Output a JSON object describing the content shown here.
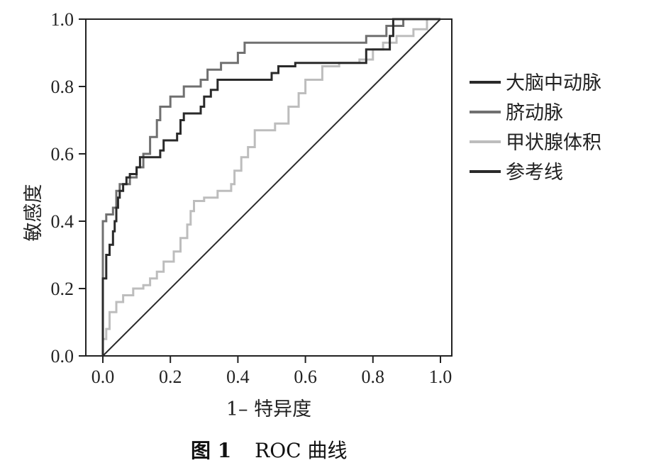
{
  "chart_data": {
    "type": "line",
    "xlabel": "1– 特异度",
    "ylabel": "敏感度",
    "xlim": [
      0.0,
      1.0
    ],
    "ylim": [
      0.0,
      1.0
    ],
    "xticks": [
      "0.0",
      "0.2",
      "0.4",
      "0.6",
      "0.8",
      "1.0"
    ],
    "yticks": [
      "0.0",
      "0.2",
      "0.4",
      "0.6",
      "0.8",
      "1.0"
    ],
    "grid": false,
    "legend_position": "right",
    "series": [
      {
        "name": "大脑中动脉",
        "color": "#2a2a2a",
        "stroke": "step",
        "points": [
          [
            0.0,
            0.0
          ],
          [
            0.0,
            0.23
          ],
          [
            0.01,
            0.23
          ],
          [
            0.01,
            0.3
          ],
          [
            0.02,
            0.3
          ],
          [
            0.02,
            0.33
          ],
          [
            0.03,
            0.33
          ],
          [
            0.03,
            0.37
          ],
          [
            0.035,
            0.37
          ],
          [
            0.035,
            0.4
          ],
          [
            0.04,
            0.4
          ],
          [
            0.04,
            0.44
          ],
          [
            0.045,
            0.44
          ],
          [
            0.045,
            0.47
          ],
          [
            0.05,
            0.47
          ],
          [
            0.05,
            0.49
          ],
          [
            0.06,
            0.49
          ],
          [
            0.06,
            0.51
          ],
          [
            0.07,
            0.51
          ],
          [
            0.07,
            0.53
          ],
          [
            0.08,
            0.53
          ],
          [
            0.08,
            0.54
          ],
          [
            0.1,
            0.54
          ],
          [
            0.1,
            0.56
          ],
          [
            0.11,
            0.56
          ],
          [
            0.11,
            0.59
          ],
          [
            0.17,
            0.59
          ],
          [
            0.17,
            0.61
          ],
          [
            0.18,
            0.61
          ],
          [
            0.18,
            0.64
          ],
          [
            0.22,
            0.64
          ],
          [
            0.22,
            0.66
          ],
          [
            0.23,
            0.66
          ],
          [
            0.23,
            0.7
          ],
          [
            0.24,
            0.7
          ],
          [
            0.24,
            0.72
          ],
          [
            0.29,
            0.72
          ],
          [
            0.29,
            0.74
          ],
          [
            0.3,
            0.74
          ],
          [
            0.3,
            0.77
          ],
          [
            0.32,
            0.77
          ],
          [
            0.32,
            0.79
          ],
          [
            0.34,
            0.79
          ],
          [
            0.34,
            0.82
          ],
          [
            0.5,
            0.82
          ],
          [
            0.5,
            0.84
          ],
          [
            0.52,
            0.84
          ],
          [
            0.52,
            0.86
          ],
          [
            0.57,
            0.86
          ],
          [
            0.57,
            0.87
          ],
          [
            0.78,
            0.87
          ],
          [
            0.78,
            0.91
          ],
          [
            0.85,
            0.91
          ],
          [
            0.85,
            0.95
          ],
          [
            0.86,
            0.95
          ],
          [
            0.86,
            1.0
          ],
          [
            1.0,
            1.0
          ]
        ]
      },
      {
        "name": "脐动脉",
        "color": "#707070",
        "stroke": "step",
        "points": [
          [
            0.0,
            0.0
          ],
          [
            0.0,
            0.4
          ],
          [
            0.01,
            0.4
          ],
          [
            0.01,
            0.42
          ],
          [
            0.03,
            0.42
          ],
          [
            0.03,
            0.44
          ],
          [
            0.04,
            0.44
          ],
          [
            0.04,
            0.49
          ],
          [
            0.05,
            0.49
          ],
          [
            0.05,
            0.51
          ],
          [
            0.08,
            0.51
          ],
          [
            0.08,
            0.53
          ],
          [
            0.1,
            0.53
          ],
          [
            0.1,
            0.56
          ],
          [
            0.12,
            0.56
          ],
          [
            0.12,
            0.6
          ],
          [
            0.14,
            0.6
          ],
          [
            0.14,
            0.65
          ],
          [
            0.16,
            0.65
          ],
          [
            0.16,
            0.7
          ],
          [
            0.17,
            0.7
          ],
          [
            0.17,
            0.74
          ],
          [
            0.2,
            0.74
          ],
          [
            0.2,
            0.77
          ],
          [
            0.24,
            0.77
          ],
          [
            0.24,
            0.8
          ],
          [
            0.29,
            0.8
          ],
          [
            0.29,
            0.82
          ],
          [
            0.31,
            0.82
          ],
          [
            0.31,
            0.85
          ],
          [
            0.35,
            0.85
          ],
          [
            0.35,
            0.87
          ],
          [
            0.4,
            0.87
          ],
          [
            0.4,
            0.9
          ],
          [
            0.42,
            0.9
          ],
          [
            0.42,
            0.93
          ],
          [
            0.78,
            0.93
          ],
          [
            0.78,
            0.95
          ],
          [
            0.84,
            0.95
          ],
          [
            0.84,
            0.98
          ],
          [
            0.89,
            0.98
          ],
          [
            0.89,
            1.0
          ],
          [
            1.0,
            1.0
          ]
        ]
      },
      {
        "name": "甲状腺体积",
        "color": "#bdbdbd",
        "stroke": "step",
        "points": [
          [
            0.0,
            0.0
          ],
          [
            0.0,
            0.05
          ],
          [
            0.01,
            0.05
          ],
          [
            0.01,
            0.08
          ],
          [
            0.02,
            0.08
          ],
          [
            0.02,
            0.13
          ],
          [
            0.04,
            0.13
          ],
          [
            0.04,
            0.16
          ],
          [
            0.06,
            0.16
          ],
          [
            0.06,
            0.18
          ],
          [
            0.09,
            0.18
          ],
          [
            0.09,
            0.2
          ],
          [
            0.12,
            0.2
          ],
          [
            0.12,
            0.21
          ],
          [
            0.14,
            0.21
          ],
          [
            0.14,
            0.23
          ],
          [
            0.16,
            0.23
          ],
          [
            0.16,
            0.25
          ],
          [
            0.18,
            0.25
          ],
          [
            0.18,
            0.28
          ],
          [
            0.21,
            0.28
          ],
          [
            0.21,
            0.31
          ],
          [
            0.23,
            0.31
          ],
          [
            0.23,
            0.35
          ],
          [
            0.25,
            0.35
          ],
          [
            0.25,
            0.39
          ],
          [
            0.26,
            0.39
          ],
          [
            0.26,
            0.43
          ],
          [
            0.27,
            0.43
          ],
          [
            0.27,
            0.46
          ],
          [
            0.3,
            0.46
          ],
          [
            0.3,
            0.47
          ],
          [
            0.34,
            0.47
          ],
          [
            0.34,
            0.49
          ],
          [
            0.38,
            0.49
          ],
          [
            0.38,
            0.51
          ],
          [
            0.39,
            0.51
          ],
          [
            0.39,
            0.55
          ],
          [
            0.41,
            0.55
          ],
          [
            0.41,
            0.59
          ],
          [
            0.43,
            0.59
          ],
          [
            0.43,
            0.62
          ],
          [
            0.45,
            0.62
          ],
          [
            0.45,
            0.67
          ],
          [
            0.51,
            0.67
          ],
          [
            0.51,
            0.69
          ],
          [
            0.55,
            0.69
          ],
          [
            0.55,
            0.74
          ],
          [
            0.58,
            0.74
          ],
          [
            0.58,
            0.78
          ],
          [
            0.6,
            0.78
          ],
          [
            0.6,
            0.82
          ],
          [
            0.65,
            0.82
          ],
          [
            0.65,
            0.86
          ],
          [
            0.7,
            0.86
          ],
          [
            0.7,
            0.87
          ],
          [
            0.76,
            0.87
          ],
          [
            0.76,
            0.88
          ],
          [
            0.8,
            0.88
          ],
          [
            0.8,
            0.91
          ],
          [
            0.83,
            0.91
          ],
          [
            0.83,
            0.93
          ],
          [
            0.87,
            0.93
          ],
          [
            0.87,
            0.95
          ],
          [
            0.92,
            0.95
          ],
          [
            0.92,
            0.97
          ],
          [
            0.96,
            0.97
          ],
          [
            0.96,
            1.0
          ],
          [
            1.0,
            1.0
          ]
        ]
      },
      {
        "name": "参考线",
        "color": "#2a2a2a",
        "stroke": "straight",
        "points": [
          [
            0.0,
            0.0
          ],
          [
            1.0,
            1.0
          ]
        ]
      }
    ]
  },
  "caption": {
    "label": "图 1",
    "text": "ROC 曲线"
  }
}
